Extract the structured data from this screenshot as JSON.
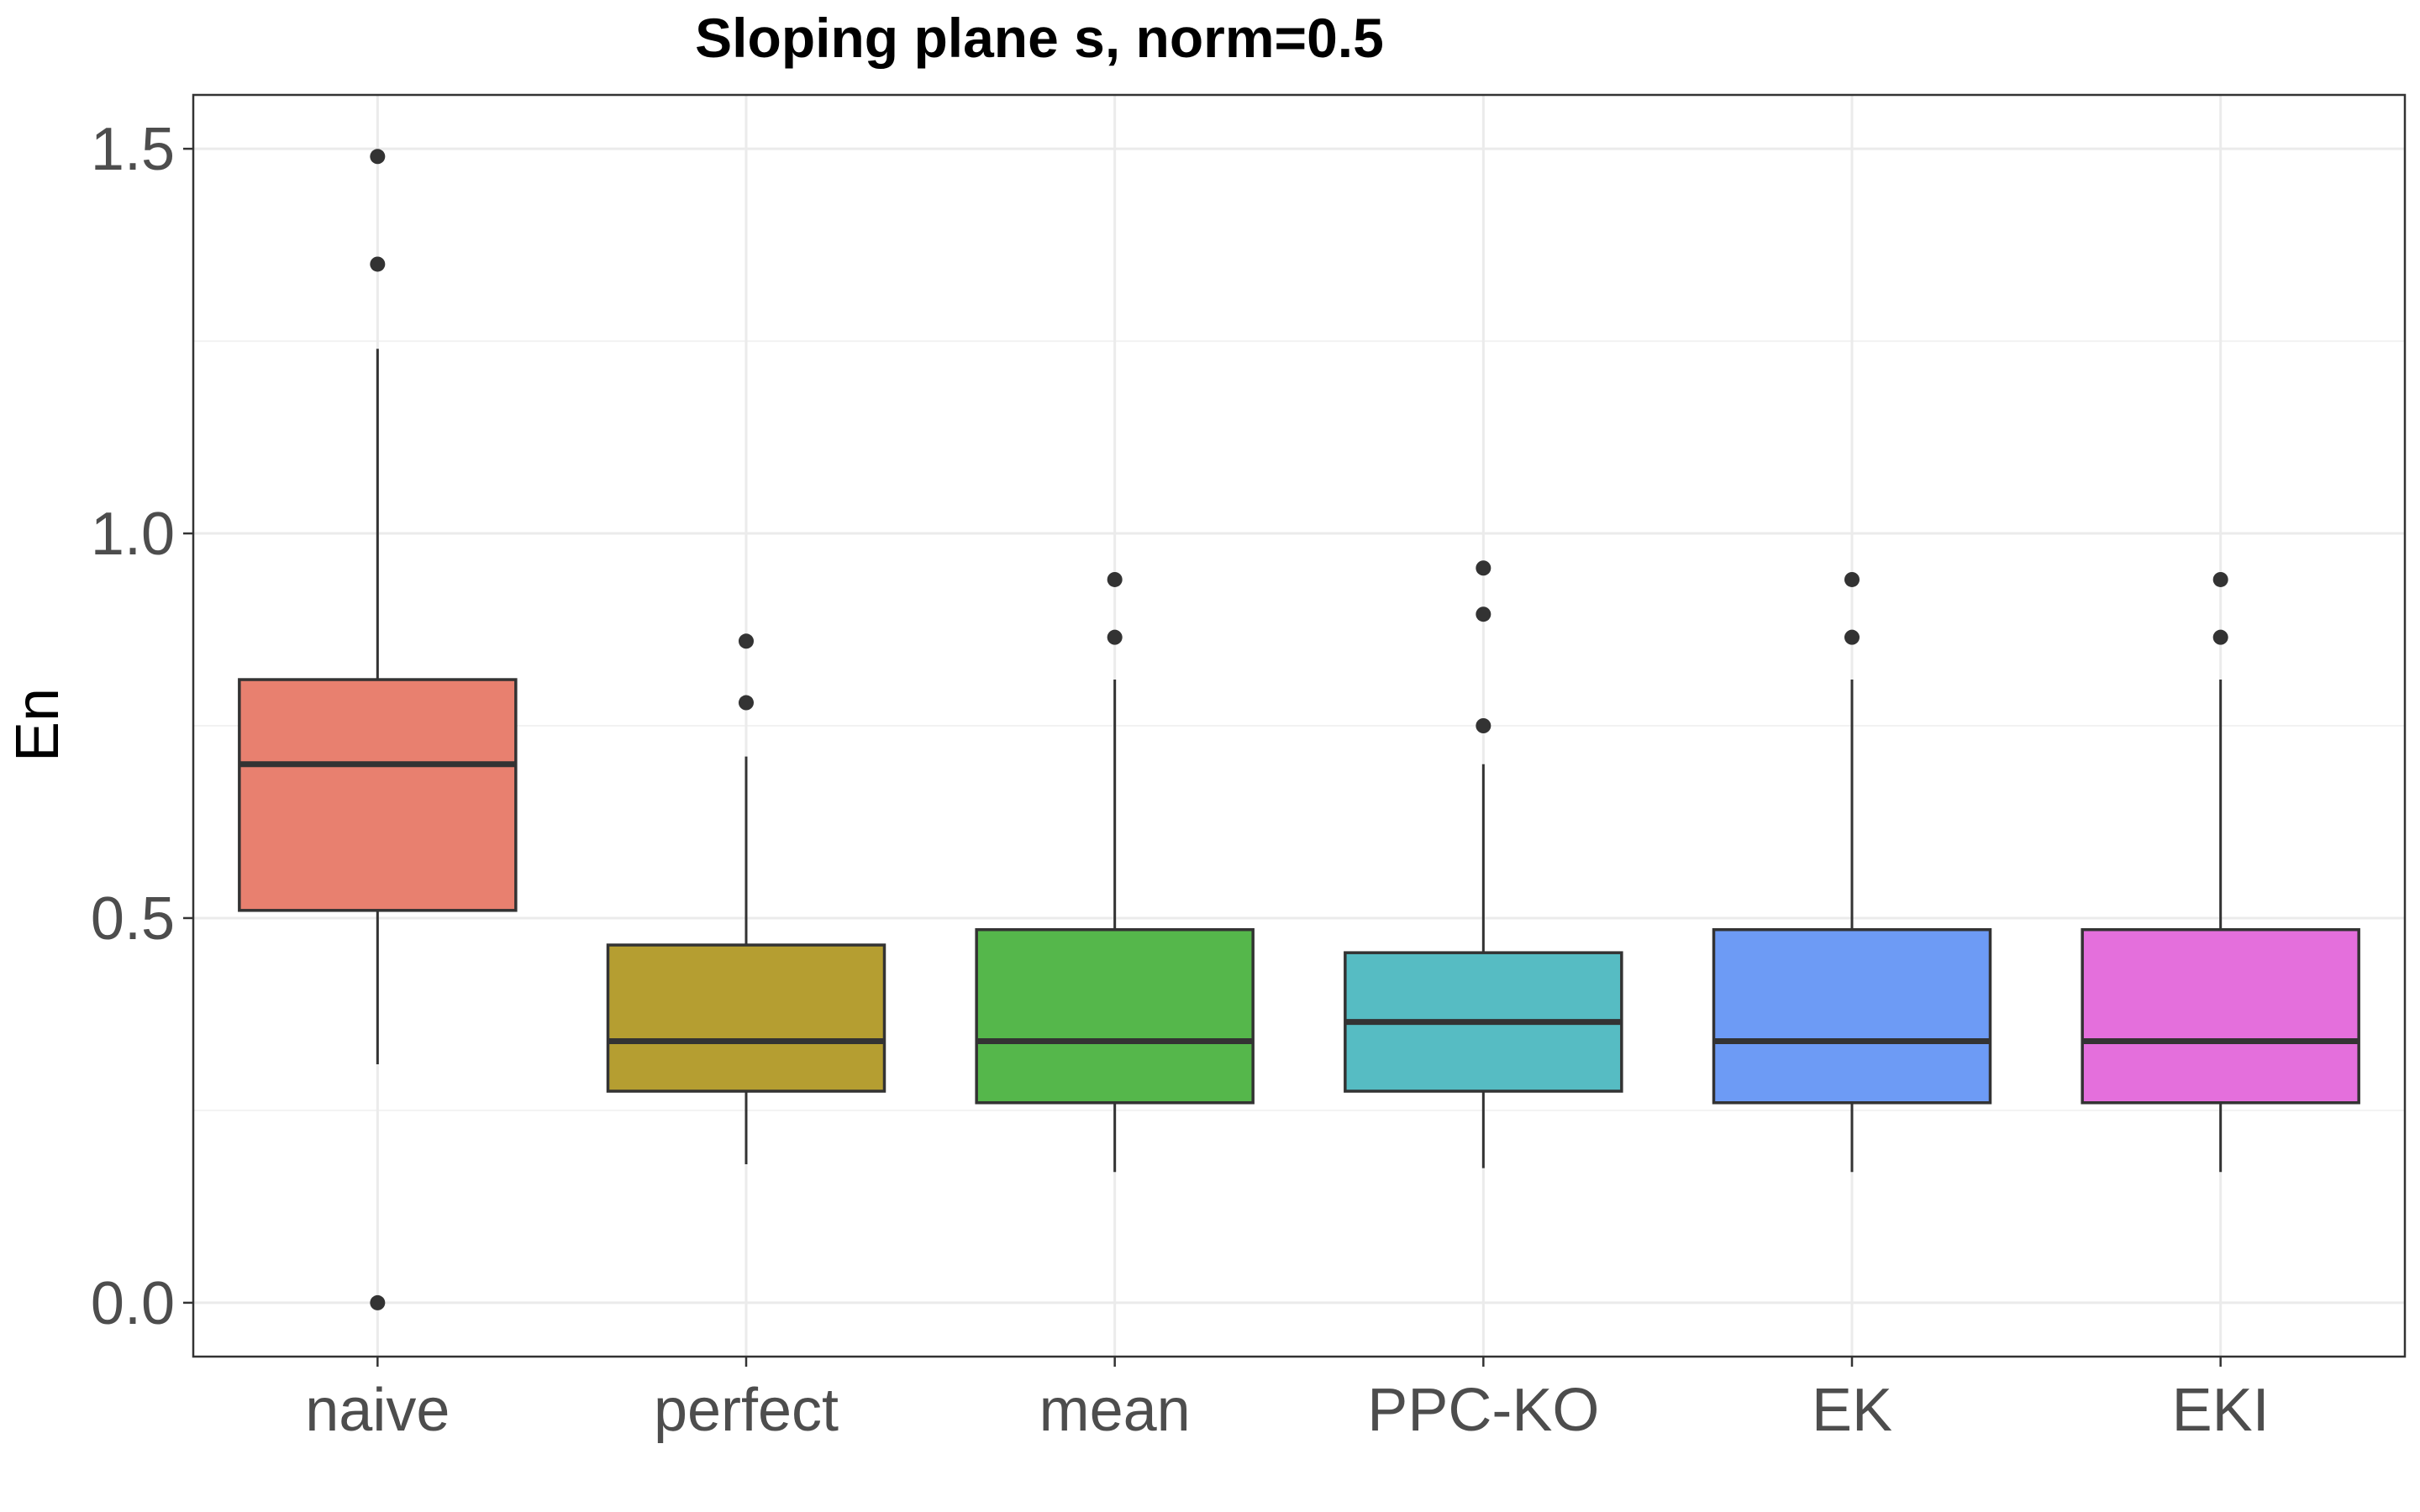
{
  "chart_data": {
    "type": "boxplot",
    "title": "Sloping plane s, norm=0.5",
    "xlabel": "",
    "ylabel": "En",
    "ylim": [
      -0.07,
      1.57
    ],
    "yticks": [
      "0.0",
      "0.5",
      "1.0",
      "1.5"
    ],
    "ytick_values": [
      0.0,
      0.5,
      1.0,
      1.5
    ],
    "grid": true,
    "legend": "none",
    "categories": [
      "naive",
      "perfect",
      "mean",
      "PPC-KO",
      "EK",
      "EKI"
    ],
    "boxes": [
      {
        "name": "naive",
        "color": "#E8806F",
        "whisker_low": 0.31,
        "q1": 0.51,
        "median": 0.7,
        "q3": 0.81,
        "whisker_high": 1.24,
        "outliers": [
          1.49,
          1.35,
          0.0
        ]
      },
      {
        "name": "perfect",
        "color": "#B59E31",
        "whisker_low": 0.18,
        "q1": 0.275,
        "median": 0.34,
        "q3": 0.465,
        "whisker_high": 0.71,
        "outliers": [
          0.86,
          0.78
        ]
      },
      {
        "name": "mean",
        "color": "#55B74B",
        "whisker_low": 0.17,
        "q1": 0.26,
        "median": 0.34,
        "q3": 0.485,
        "whisker_high": 0.81,
        "outliers": [
          0.94,
          0.865
        ]
      },
      {
        "name": "PPC-KO",
        "color": "#56BCC3",
        "whisker_low": 0.175,
        "q1": 0.275,
        "median": 0.365,
        "q3": 0.455,
        "whisker_high": 0.7,
        "outliers": [
          0.955,
          0.895,
          0.75
        ]
      },
      {
        "name": "EK",
        "color": "#6D9BF5",
        "whisker_low": 0.17,
        "q1": 0.26,
        "median": 0.34,
        "q3": 0.485,
        "whisker_high": 0.81,
        "outliers": [
          0.94,
          0.865
        ]
      },
      {
        "name": "EKI",
        "color": "#E46FDC",
        "whisker_low": 0.17,
        "q1": 0.26,
        "median": 0.34,
        "q3": 0.485,
        "whisker_high": 0.81,
        "outliers": [
          0.94,
          0.865
        ]
      }
    ]
  }
}
